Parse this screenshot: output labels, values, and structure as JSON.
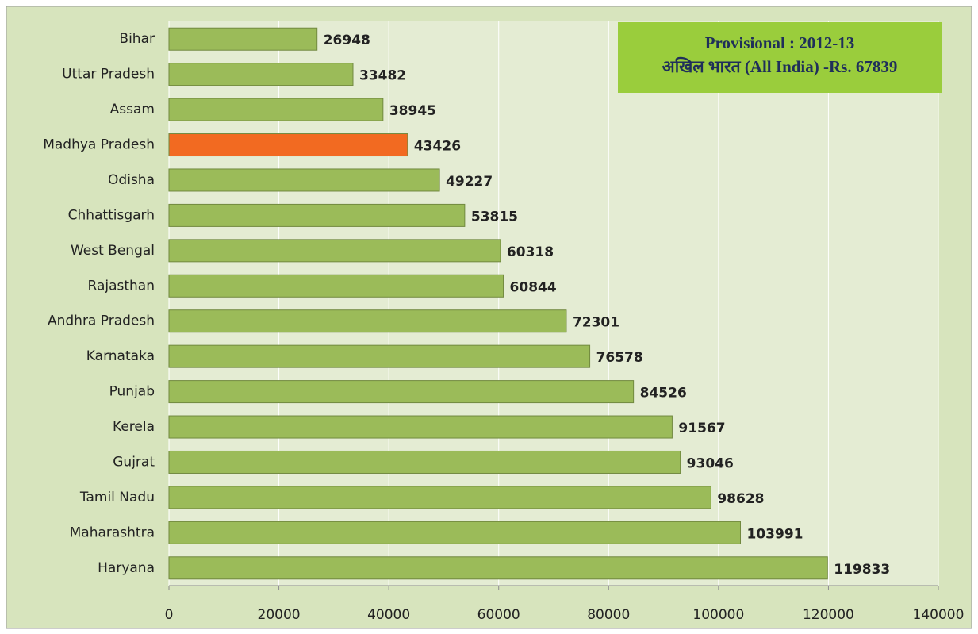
{
  "chart_data": {
    "type": "barh",
    "categories": [
      "Bihar",
      "Uttar Pradesh",
      "Assam",
      "Madhya Pradesh",
      "Odisha",
      "Chhattisgarh",
      "West Bengal",
      "Rajasthan",
      "Andhra Pradesh",
      "Karnataka",
      "Punjab",
      "Kerela",
      "Gujrat",
      "Tamil Nadu",
      "Maharashtra",
      "Haryana"
    ],
    "values": [
      26948,
      33482,
      38945,
      43426,
      49227,
      53815,
      60318,
      60844,
      72301,
      76578,
      84526,
      91567,
      93046,
      98628,
      103991,
      119833
    ],
    "colors": [
      "#9bbb59",
      "#9bbb59",
      "#9bbb59",
      "#f26a21",
      "#9bbb59",
      "#9bbb59",
      "#9bbb59",
      "#9bbb59",
      "#9bbb59",
      "#9bbb59",
      "#9bbb59",
      "#9bbb59",
      "#9bbb59",
      "#9bbb59",
      "#9bbb59",
      "#9bbb59"
    ],
    "xlim": [
      0,
      140000
    ],
    "xticks": [
      0,
      20000,
      40000,
      60000,
      80000,
      100000,
      120000,
      140000
    ],
    "grid": true,
    "annotation": [
      "Provisional : 2012-13",
      "अखिल भारत (All India) -Rs. 67839"
    ]
  }
}
